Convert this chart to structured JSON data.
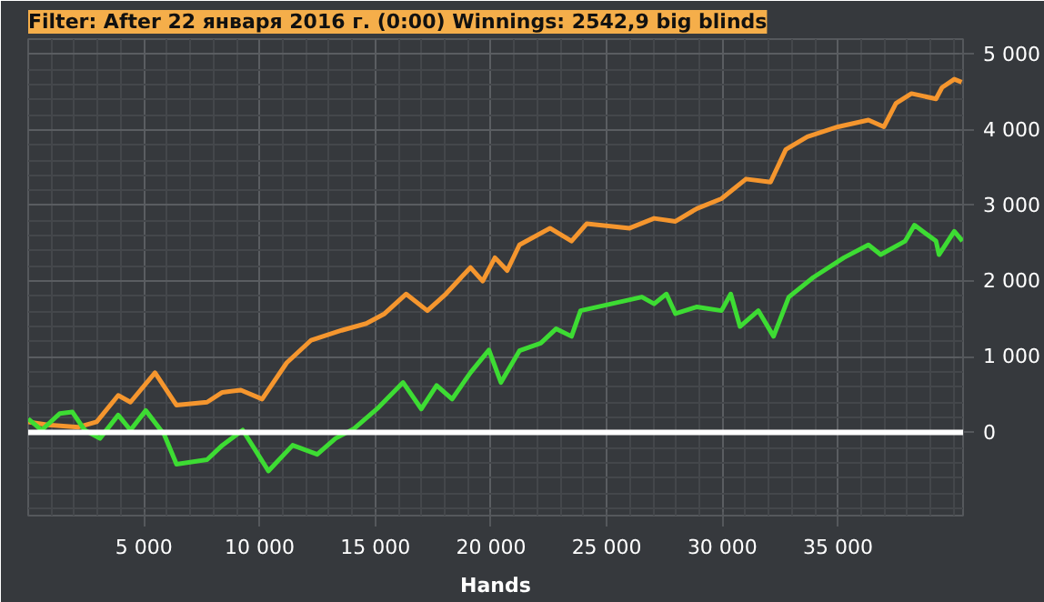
{
  "chart_data": {
    "type": "line",
    "title": "Filter: After 22 января 2016 г. (0:00) Winnings: 2542,9 big blinds",
    "xlabel": "Hands",
    "series": [
      {
        "color": "#f5962e",
        "x": [
          0,
          850,
          2170,
          2960,
          3890,
          4420,
          5480,
          6410,
          7730,
          8390,
          9190,
          10110,
          11170,
          12230,
          13550,
          14610,
          15400,
          16330,
          17250,
          18050,
          19110,
          19640,
          20170,
          20700,
          21230,
          22550,
          23480,
          24140,
          25990,
          27050,
          27970,
          28900,
          29960,
          31020,
          32080,
          32740,
          33670,
          34990,
          36310,
          36980,
          37500,
          38170,
          39230,
          39490,
          40020,
          40340
        ],
        "values": [
          140,
          100,
          70,
          140,
          490,
          400,
          790,
          360,
          400,
          530,
          560,
          440,
          920,
          1220,
          1350,
          1440,
          1570,
          1830,
          1610,
          1830,
          2180,
          2000,
          2310,
          2140,
          2480,
          2700,
          2530,
          2760,
          2700,
          2830,
          2790,
          2960,
          3090,
          3350,
          3310,
          3740,
          3910,
          4040,
          4130,
          4040,
          4350,
          4480,
          4410,
          4560,
          4670,
          4630
        ]
      },
      {
        "color": "#3ddc33",
        "x": [
          0,
          580,
          1370,
          1910,
          2440,
          3100,
          3890,
          4420,
          5080,
          5880,
          6410,
          7730,
          8390,
          9270,
          9850,
          10380,
          11430,
          12490,
          13280,
          14080,
          15140,
          16200,
          16990,
          17650,
          18320,
          19110,
          19910,
          20430,
          21230,
          22150,
          22810,
          23480,
          23870,
          25200,
          26520,
          27050,
          27580,
          27970,
          28900,
          29960,
          30360,
          30760,
          31550,
          32210,
          32870,
          33930,
          35250,
          36310,
          36840,
          37900,
          38300,
          39230,
          39360,
          40020,
          40370
        ],
        "values": [
          180,
          30,
          250,
          270,
          30,
          -80,
          230,
          30,
          290,
          -30,
          -420,
          -360,
          -170,
          30,
          -250,
          -510,
          -170,
          -290,
          -80,
          50,
          330,
          660,
          310,
          620,
          440,
          790,
          1090,
          660,
          1080,
          1180,
          1370,
          1270,
          1610,
          1700,
          1790,
          1700,
          1830,
          1570,
          1660,
          1610,
          1830,
          1400,
          1610,
          1270,
          1790,
          2050,
          2310,
          2480,
          2350,
          2530,
          2740,
          2530,
          2350,
          2660,
          2530
        ]
      }
    ],
    "xlim": [
      0,
      40400
    ],
    "ylim": [
      -1100,
      5200
    ],
    "xticks": [
      {
        "value": 5000,
        "label": "5 000"
      },
      {
        "value": 10000,
        "label": "10 000"
      },
      {
        "value": 15000,
        "label": "15 000"
      },
      {
        "value": 20000,
        "label": "20 000"
      },
      {
        "value": 25000,
        "label": "25 000"
      },
      {
        "value": 30000,
        "label": "30 000"
      },
      {
        "value": 35000,
        "label": "35 000"
      }
    ],
    "yticks": [
      0,
      {
        "value": 1000,
        "label": "1 000"
      },
      {
        "value": 2000,
        "label": "2 000"
      },
      {
        "value": 3000,
        "label": "3 000"
      },
      {
        "value": 4000,
        "label": "4 000"
      },
      {
        "value": 5000,
        "label": "5 000"
      }
    ],
    "ref_lines": [
      {
        "axis": "y",
        "value": 0,
        "color": "#ffffff"
      }
    ],
    "grid": true,
    "line_style": "solid"
  }
}
